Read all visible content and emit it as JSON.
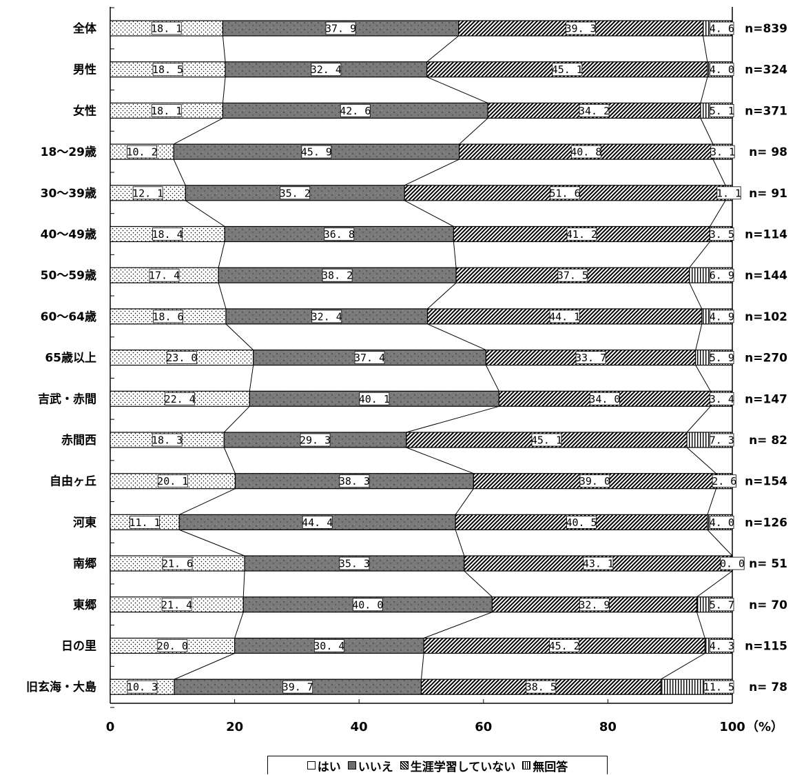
{
  "chart_data": {
    "type": "bar",
    "orientation": "horizontal",
    "stacked": true,
    "categories": [
      "全体",
      "男性",
      "女性",
      "18～29歳",
      "30～39歳",
      "40～49歳",
      "50～59歳",
      "60～64歳",
      "65歳以上",
      "吉武・赤間",
      "赤間西",
      "自由ヶ丘",
      "河東",
      "南郷",
      "東郷",
      "日の里",
      "旧玄海・大島"
    ],
    "n_labels": [
      "n=839",
      "n=324",
      "n=371",
      "n= 98",
      "n= 91",
      "n=114",
      "n=144",
      "n=102",
      "n=270",
      "n=147",
      "n= 82",
      "n=154",
      "n=126",
      "n= 51",
      "n= 70",
      "n=115",
      "n= 78"
    ],
    "series": [
      {
        "name": "はい",
        "values": [
          18.1,
          18.5,
          18.1,
          10.2,
          12.1,
          18.4,
          17.4,
          18.6,
          23.0,
          22.4,
          18.3,
          20.1,
          11.1,
          21.6,
          21.4,
          20.0,
          10.3
        ]
      },
      {
        "name": "いいえ",
        "values": [
          37.9,
          32.4,
          42.6,
          45.9,
          35.2,
          36.8,
          38.2,
          32.4,
          37.4,
          40.1,
          29.3,
          38.3,
          44.4,
          35.3,
          40.0,
          30.4,
          39.7
        ]
      },
      {
        "name": "生涯学習していない",
        "values": [
          39.3,
          45.1,
          34.2,
          40.8,
          51.6,
          41.2,
          37.5,
          44.1,
          33.7,
          34.0,
          45.1,
          39.0,
          40.5,
          43.1,
          32.9,
          45.2,
          38.5
        ]
      },
      {
        "name": "無回答",
        "values": [
          4.6,
          4.0,
          5.1,
          3.1,
          1.1,
          3.5,
          6.9,
          4.9,
          5.9,
          3.4,
          7.3,
          2.6,
          4.0,
          0.0,
          5.7,
          4.3,
          11.5
        ]
      }
    ],
    "xlim": [
      0,
      100
    ],
    "xticks": [
      "0",
      "20",
      "40",
      "60",
      "80",
      "100"
    ],
    "xunit": "（%）",
    "legend_position": "bottom",
    "legend_symbols": [
      "□",
      "▩",
      "▧",
      "▥"
    ]
  }
}
